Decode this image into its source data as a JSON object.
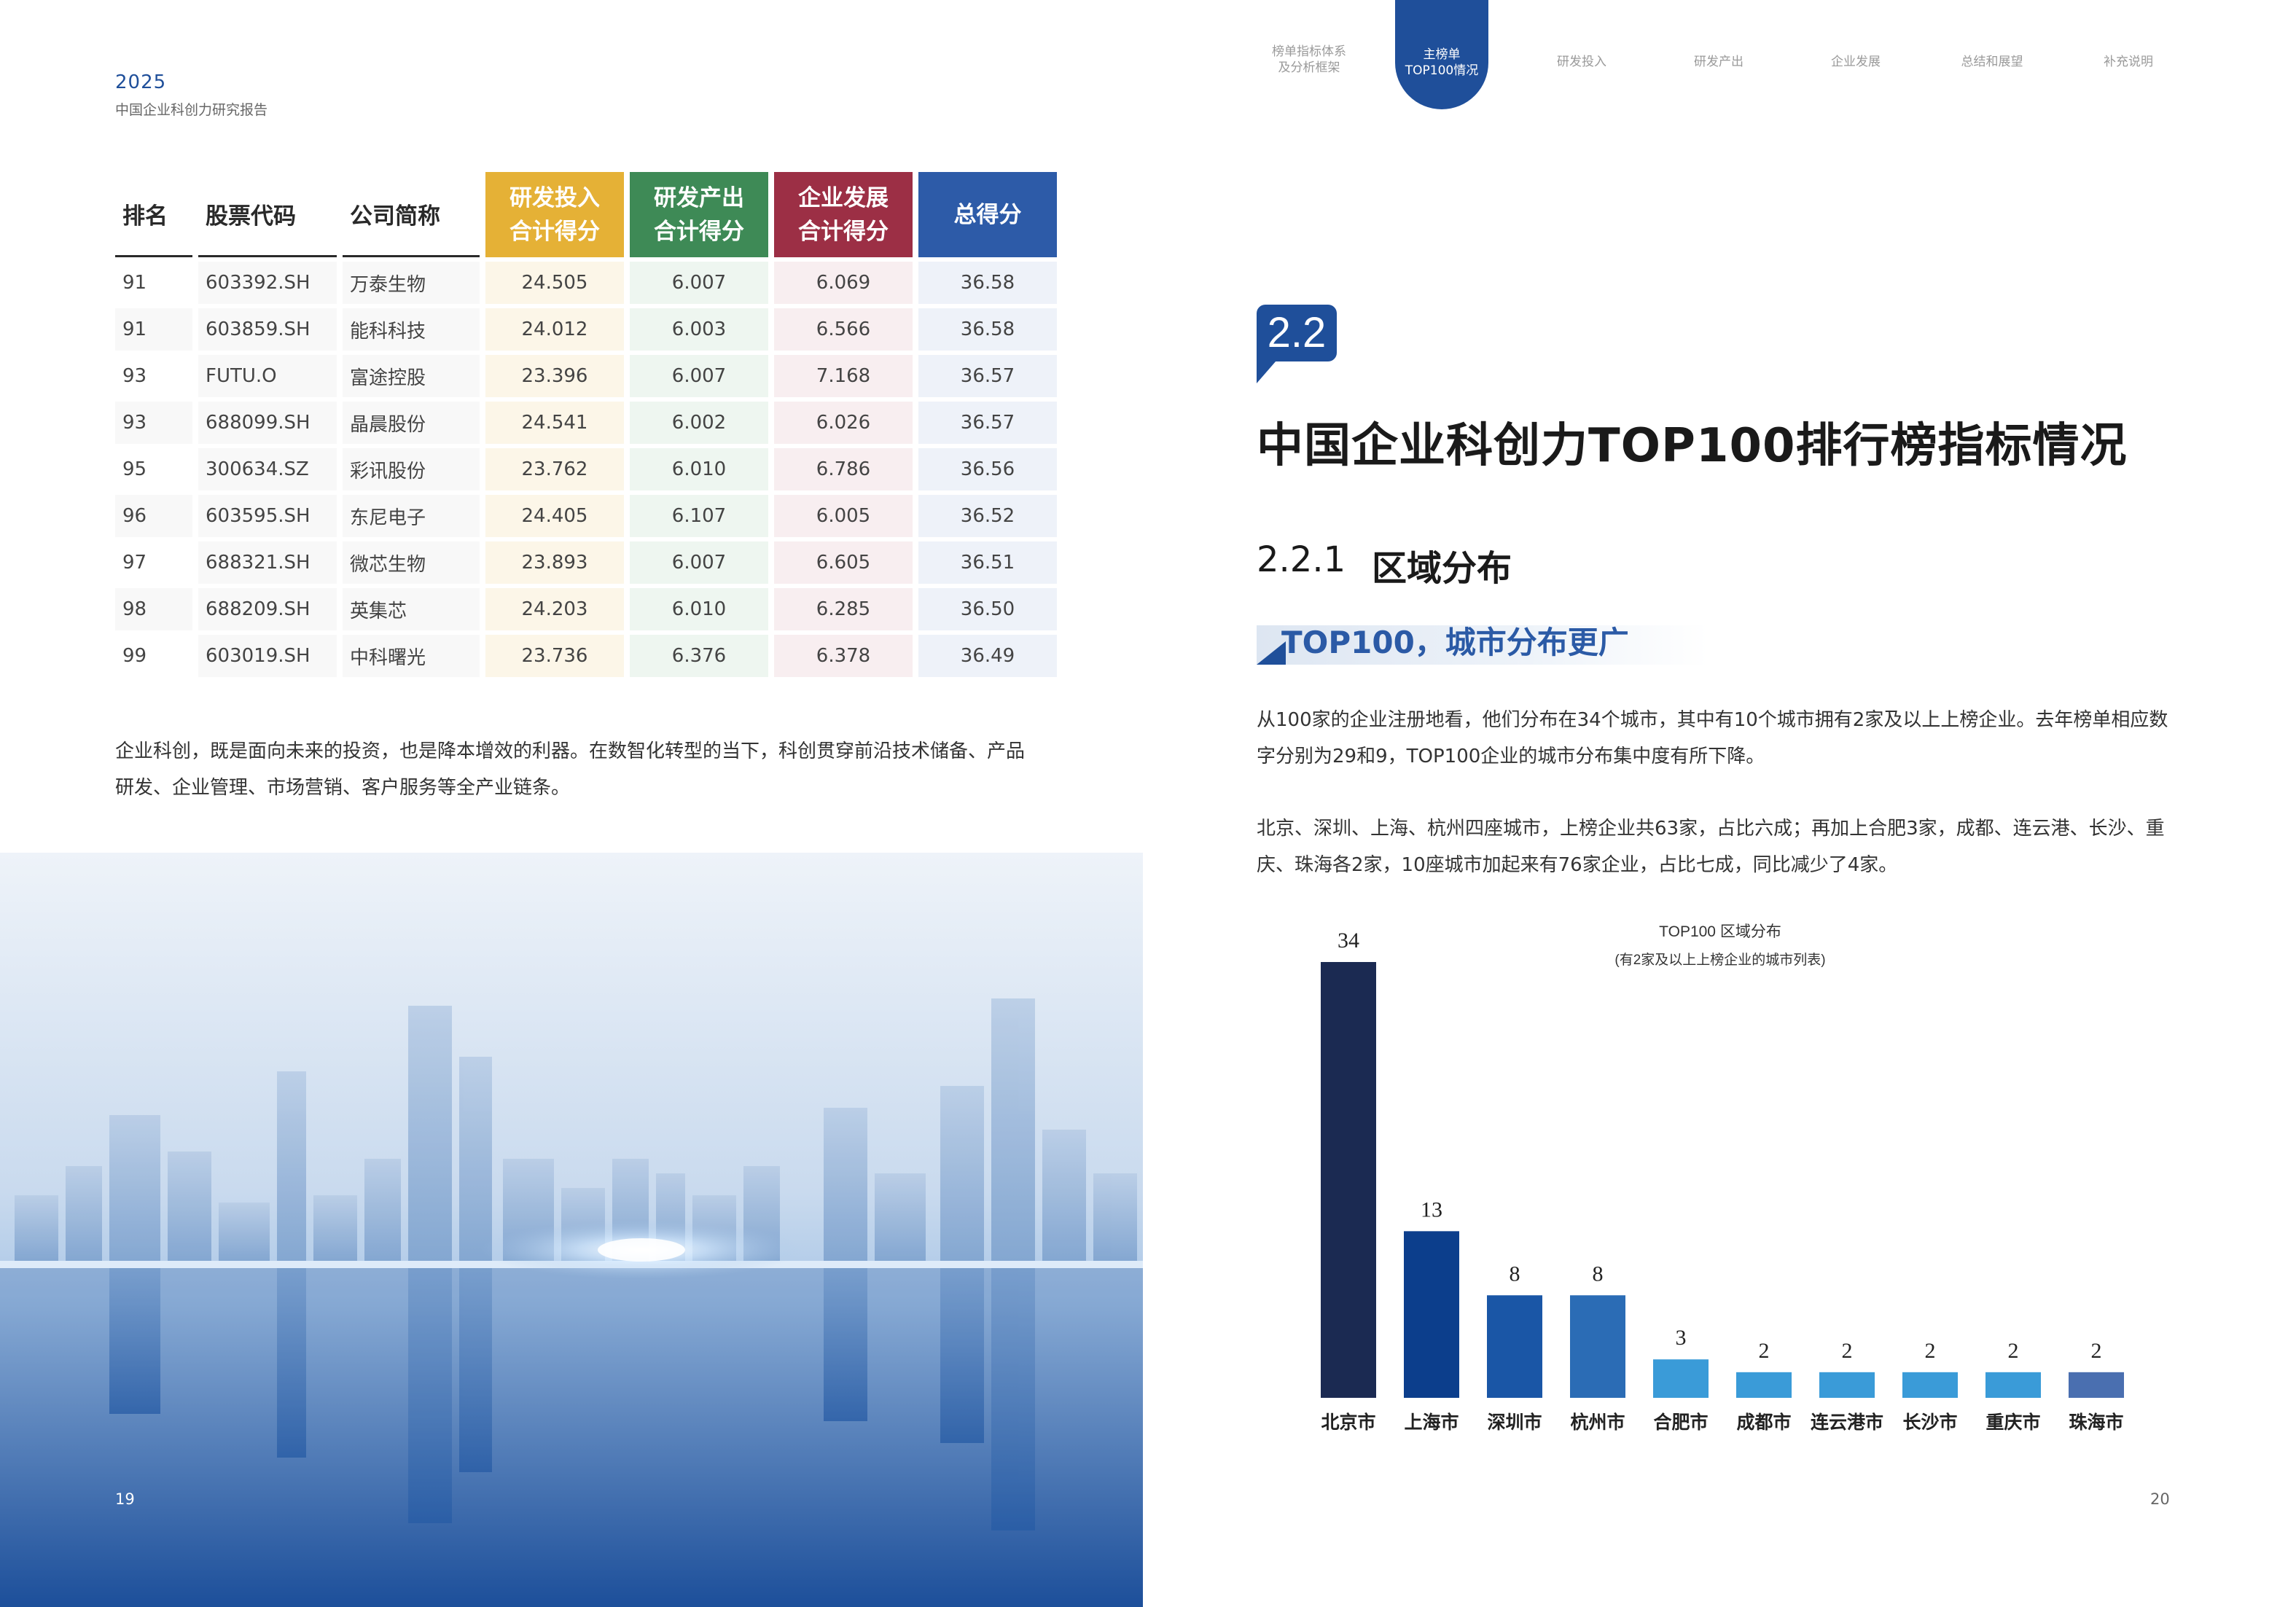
{
  "left_header": {
    "year": "2025",
    "report": "中国企业科创力研究报告"
  },
  "table": {
    "headers": {
      "rank": "排名",
      "code": "股票代码",
      "name": "公司简称",
      "rd": [
        "研发投入",
        "合计得分"
      ],
      "out": [
        "研发产出",
        "合计得分"
      ],
      "dev": [
        "企业发展",
        "合计得分"
      ],
      "total": "总得分"
    },
    "rows": [
      {
        "rank": "91",
        "code": "603392.SH",
        "name": "万泰生物",
        "rd": "24.505",
        "out": "6.007",
        "dev": "6.069",
        "total": "36.58"
      },
      {
        "rank": "91",
        "code": "603859.SH",
        "name": "能科科技",
        "rd": "24.012",
        "out": "6.003",
        "dev": "6.566",
        "total": "36.58"
      },
      {
        "rank": "93",
        "code": "FUTU.O",
        "name": "富途控股",
        "rd": "23.396",
        "out": "6.007",
        "dev": "7.168",
        "total": "36.57"
      },
      {
        "rank": "93",
        "code": "688099.SH",
        "name": "晶晨股份",
        "rd": "24.541",
        "out": "6.002",
        "dev": "6.026",
        "total": "36.57"
      },
      {
        "rank": "95",
        "code": "300634.SZ",
        "name": "彩讯股份",
        "rd": "23.762",
        "out": "6.010",
        "dev": "6.786",
        "total": "36.56"
      },
      {
        "rank": "96",
        "code": "603595.SH",
        "name": "东尼电子",
        "rd": "24.405",
        "out": "6.107",
        "dev": "6.005",
        "total": "36.52"
      },
      {
        "rank": "97",
        "code": "688321.SH",
        "name": "微芯生物",
        "rd": "23.893",
        "out": "6.007",
        "dev": "6.605",
        "total": "36.51"
      },
      {
        "rank": "98",
        "code": "688209.SH",
        "name": "英集芯",
        "rd": "24.203",
        "out": "6.010",
        "dev": "6.285",
        "total": "36.50"
      },
      {
        "rank": "99",
        "code": "603019.SH",
        "name": "中科曙光",
        "rd": "23.736",
        "out": "6.376",
        "dev": "6.378",
        "total": "36.49"
      }
    ]
  },
  "left_paragraph": "企业科创，既是面向未来的投资，也是降本增效的利器。在数智化转型的当下，科创贯穿前沿技术储备、产品研发、企业管理、市场营销、客户服务等全产业链条。",
  "page_left": "19",
  "page_right": "20",
  "nav": {
    "item1": [
      "榜单指标体系",
      "及分析框架"
    ],
    "active": [
      "主榜单",
      "TOP100情况"
    ],
    "item3": "研发投入",
    "item4": "研发产出",
    "item5": "企业发展",
    "item6": "总结和展望",
    "item7": "补充说明"
  },
  "section": {
    "number": "2.2",
    "title": "中国企业科创力TOP100排行榜指标情况",
    "sub_number": "2.2.1",
    "sub_title": "区域分布",
    "tag": "TOP100，城市分布更广",
    "para1": "从100家的企业注册地看，他们分布在34个城市，其中有10个城市拥有2家及以上上榜企业。去年榜单相应数字分别为29和9，TOP100企业的城市分布集中度有所下降。",
    "para2": "北京、深圳、上海、杭州四座城市，上榜企业共63家，占比六成；再加上合肥3家，成都、连云港、长沙、重庆、珠海各2家，10座城市加起来有76家企业，占比七成，同比减少了4家。"
  },
  "chart_data": {
    "type": "bar",
    "title": "TOP100 区域分布",
    "subtitle": "(有2家及以上上榜企业的城市列表)",
    "categories": [
      "北京市",
      "上海市",
      "深圳市",
      "杭州市",
      "合肥市",
      "成都市",
      "连云港市",
      "长沙市",
      "重庆市",
      "珠海市"
    ],
    "values": [
      34,
      13,
      8,
      8,
      3,
      2,
      2,
      2,
      2,
      2
    ],
    "colors": [
      "#1b2a52",
      "#0c3e8c",
      "#1a56a6",
      "#2b6cb5",
      "#3a9bd8",
      "#3a9bd8",
      "#3a9bd8",
      "#3a9bd8",
      "#3a9bd8",
      "#4a6fb0"
    ],
    "ylim": [
      0,
      34
    ],
    "grid": false,
    "legend": "none"
  },
  "colors": {
    "brand": "#1f4f9a",
    "rd": "#e5b136",
    "out": "#3e8a56",
    "dev": "#9c2f45",
    "total": "#2d5ba8"
  }
}
